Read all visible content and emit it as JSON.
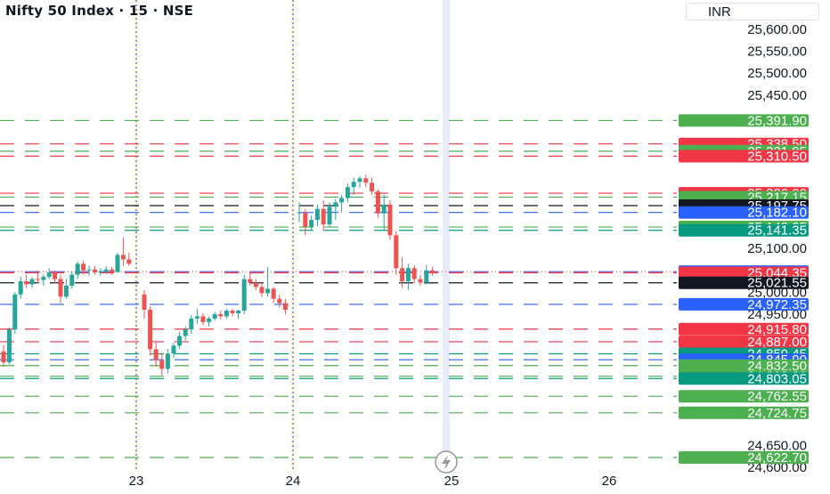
{
  "header": {
    "title": "Nifty 50 Index · 15 · NSE",
    "currency": "INR"
  },
  "colors": {
    "up": "#26a69a",
    "down": "#ef5350",
    "green": "#4caf50",
    "red": "#f23645",
    "blue": "#2962ff",
    "black": "#131722",
    "teal": "#089981",
    "dark_green": "#1b7f5c"
  },
  "chart_data": {
    "type": "candlestick",
    "title": "Nifty 50 Index · 15 · NSE",
    "currency": "INR",
    "x_ticks": [
      "23",
      "24",
      "25",
      "26"
    ],
    "y_ticks": [
      24600,
      24650,
      24950,
      25000,
      25100,
      25450,
      25500,
      25550,
      25600
    ],
    "y_tick_labels": [
      "24,600.00",
      "24,650.00",
      "24,950.00",
      "25,000.00",
      "25,100.00",
      "25,450.00",
      "25,500.00",
      "25,550.00",
      "25,600.00"
    ],
    "ylim": [
      24595,
      25615
    ],
    "candles": [
      [
        24865,
        24880,
        24830,
        24840
      ],
      [
        24840,
        24920,
        24835,
        24915
      ],
      [
        24915,
        25000,
        24905,
        24995
      ],
      [
        24995,
        25035,
        24985,
        25025
      ],
      [
        25025,
        25040,
        25010,
        25018
      ],
      [
        25018,
        25035,
        25010,
        25030
      ],
      [
        25030,
        25050,
        25020,
        25028
      ],
      [
        25028,
        25040,
        25015,
        25035
      ],
      [
        25035,
        25055,
        25030,
        25045
      ],
      [
        25045,
        25050,
        25020,
        25030
      ],
      [
        25030,
        25040,
        24975,
        24990
      ],
      [
        24990,
        25030,
        24985,
        25015
      ],
      [
        25015,
        25048,
        25008,
        25040
      ],
      [
        25040,
        25070,
        25030,
        25065
      ],
      [
        25065,
        25072,
        25040,
        25050
      ],
      [
        25050,
        25060,
        25038,
        25052
      ],
      [
        25052,
        25060,
        25040,
        25045
      ],
      [
        25045,
        25055,
        25038,
        25048
      ],
      [
        25048,
        25060,
        25042,
        25052
      ],
      [
        25052,
        25058,
        25040,
        25046
      ],
      [
        25046,
        25090,
        25044,
        25085
      ],
      [
        25085,
        25125,
        25060,
        25075
      ],
      [
        25075,
        25090,
        25060,
        25065
      ],
      [
        24995,
        25005,
        24940,
        24960
      ],
      [
        24960,
        24968,
        24855,
        24870
      ],
      [
        24870,
        24885,
        24830,
        24845
      ],
      [
        24845,
        24862,
        24810,
        24825
      ],
      [
        24825,
        24870,
        24815,
        24860
      ],
      [
        24860,
        24885,
        24850,
        24878
      ],
      [
        24878,
        24910,
        24870,
        24900
      ],
      [
        24900,
        24922,
        24890,
        24915
      ],
      [
        24915,
        24948,
        24905,
        24940
      ],
      [
        24940,
        24962,
        24928,
        24945
      ],
      [
        24945,
        24952,
        24925,
        24932
      ],
      [
        24932,
        24945,
        24922,
        24940
      ],
      [
        24940,
        24955,
        24935,
        24950
      ],
      [
        24950,
        24958,
        24938,
        24945
      ],
      [
        24945,
        24962,
        24940,
        24958
      ],
      [
        24958,
        24962,
        24945,
        24952
      ],
      [
        24952,
        24960,
        24940,
        24958
      ],
      [
        24958,
        25040,
        24950,
        25030
      ],
      [
        25030,
        25048,
        25015,
        25022
      ],
      [
        25022,
        25030,
        25005,
        25012
      ],
      [
        25012,
        25022,
        24990,
        24998
      ],
      [
        24998,
        25058,
        24990,
        25008
      ],
      [
        25008,
        25012,
        24975,
        24985
      ],
      [
        24985,
        24995,
        24965,
        24975
      ],
      [
        24975,
        24985,
        24950,
        24960
      ],
      [
        25180,
        25205,
        25160,
        25182
      ],
      [
        25182,
        25190,
        25130,
        25150
      ],
      [
        25150,
        25175,
        25140,
        25165
      ],
      [
        25165,
        25200,
        25150,
        25190
      ],
      [
        25190,
        25210,
        25140,
        25155
      ],
      [
        25155,
        25205,
        25150,
        25195
      ],
      [
        25195,
        25212,
        25165,
        25205
      ],
      [
        25205,
        25222,
        25182,
        25215
      ],
      [
        25215,
        25248,
        25205,
        25240
      ],
      [
        25240,
        25262,
        25222,
        25252
      ],
      [
        25252,
        25265,
        25238,
        25260
      ],
      [
        25260,
        25268,
        25240,
        25250
      ],
      [
        25250,
        25262,
        25222,
        25230
      ],
      [
        25230,
        25235,
        25170,
        25180
      ],
      [
        25180,
        25222,
        25140,
        25200
      ],
      [
        25200,
        25210,
        25120,
        25130
      ],
      [
        25130,
        25140,
        25040,
        25055
      ],
      [
        25055,
        25080,
        25010,
        25025
      ],
      [
        25025,
        25065,
        25005,
        25055
      ],
      [
        25055,
        25062,
        25020,
        25030
      ],
      [
        25030,
        25040,
        25015,
        25022
      ],
      [
        25022,
        25062,
        25018,
        25050
      ],
      [
        25050,
        25058,
        25038,
        25044
      ]
    ],
    "price_levels": [
      {
        "value": 25391.9,
        "label": "25,391.90",
        "color": "green"
      },
      {
        "value": 25338.5,
        "label": "25,338.50",
        "color": "red"
      },
      {
        "value": 25321.95,
        "label": "25,321.95",
        "color": "green"
      },
      {
        "value": 25310.5,
        "label": "25,310.50",
        "color": "red"
      },
      {
        "value": 25226.0,
        "label": "25,226.00",
        "color": "red"
      },
      {
        "value": 25217.15,
        "label": "25,217.15",
        "color": "green"
      },
      {
        "value": 25197.75,
        "label": "25,197.75",
        "color": "black"
      },
      {
        "value": 25182.1,
        "label": "25,182.10",
        "color": "blue"
      },
      {
        "value": 25148.85,
        "label": "25,148.85",
        "color": "green"
      },
      {
        "value": 25141.35,
        "label": "25,141.35",
        "color": "teal"
      },
      {
        "value": 25047.0,
        "label": "25,047.00",
        "color": "blue"
      },
      {
        "value": 25044.35,
        "label": "25,044.35",
        "color": "red"
      },
      {
        "value": 25021.55,
        "label": "25,021.55",
        "color": "black"
      },
      {
        "value": 24972.35,
        "label": "24,972.35",
        "color": "blue"
      },
      {
        "value": 24915.8,
        "label": "24,915.80",
        "color": "red"
      },
      {
        "value": 24887.0,
        "label": "24,887.00",
        "color": "red"
      },
      {
        "value": 24859.45,
        "label": "24,859.45",
        "color": "teal"
      },
      {
        "value": 24845.9,
        "label": "24,845.90",
        "color": "blue"
      },
      {
        "value": 24832.5,
        "label": "24,832.50",
        "color": "green"
      },
      {
        "value": 24808.3,
        "label": "24,808.30",
        "color": "green"
      },
      {
        "value": 24803.05,
        "label": "24,803.05",
        "color": "teal"
      },
      {
        "value": 24762.55,
        "label": "24,762.55",
        "color": "green"
      },
      {
        "value": 24724.75,
        "label": "24,724.75",
        "color": "green"
      },
      {
        "value": 24622.7,
        "label": "24,622.70",
        "color": "green"
      }
    ]
  }
}
